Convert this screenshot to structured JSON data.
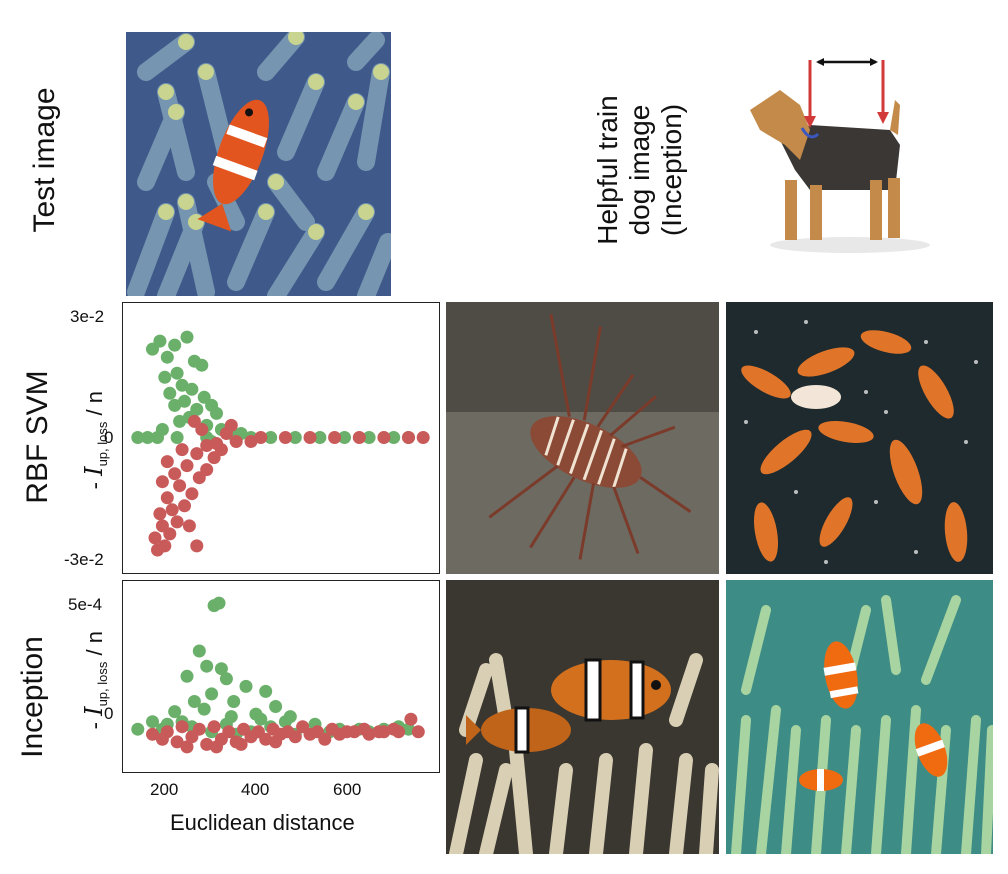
{
  "labels": {
    "test_image": "Test image",
    "helpful_line1": "Helpful train",
    "helpful_line2": "dog image",
    "helpful_line3": "(Inception)",
    "rbf_svm": "RBF SVM",
    "inception": "Inception"
  },
  "y_axis_label": {
    "minus": "-",
    "symbol": "I",
    "subscript": "up, loss",
    "suffix": "/ n"
  },
  "chart_data": [
    {
      "type": "scatter",
      "title": "",
      "model": "RBF SVM",
      "xlabel": "",
      "ylabel": "- I up, loss / n",
      "xlim": [
        120,
        760
      ],
      "ylim": [
        -0.03,
        0.03
      ],
      "yticks": [
        "3e-2",
        "0",
        "-3e-2"
      ],
      "grid": false,
      "series": [
        {
          "color": "#6ab06a",
          "points": [
            [
              180,
              0.022
            ],
            [
              195,
              0.024
            ],
            [
              210,
              0.02
            ],
            [
              225,
              0.023
            ],
            [
              250,
              0.025
            ],
            [
              265,
              0.019
            ],
            [
              280,
              0.018
            ],
            [
              230,
              0.016
            ],
            [
              205,
              0.015
            ],
            [
              240,
              0.013
            ],
            [
              260,
              0.012
            ],
            [
              215,
              0.011
            ],
            [
              285,
              0.01
            ],
            [
              300,
              0.008
            ],
            [
              225,
              0.008
            ],
            [
              245,
              0.009
            ],
            [
              270,
              0.007
            ],
            [
              310,
              0.006
            ],
            [
              255,
              0.005
            ],
            [
              235,
              0.004
            ],
            [
              290,
              0.003
            ],
            [
              320,
              0.002
            ],
            [
              200,
              0.002
            ],
            [
              340,
              0.001
            ],
            [
              360,
              0.001
            ],
            [
              150,
              0.0
            ],
            [
              170,
              0.0
            ],
            [
              230,
              0.0
            ],
            [
              290,
              0.0
            ],
            [
              380,
              0.0
            ],
            [
              420,
              0.0
            ],
            [
              470,
              0.0
            ],
            [
              520,
              0.0
            ],
            [
              570,
              0.0
            ],
            [
              620,
              0.0
            ],
            [
              670,
              0.0
            ],
            [
              700,
              0.0
            ],
            [
              300,
              -0.001
            ],
            [
              350,
              -0.0005
            ],
            [
              190,
              0.0
            ]
          ]
        },
        {
          "color": "#c95a5a",
          "points": [
            [
              190,
              -0.028
            ],
            [
              205,
              -0.027
            ],
            [
              185,
              -0.025
            ],
            [
              215,
              -0.024
            ],
            [
              200,
              -0.022
            ],
            [
              230,
              -0.021
            ],
            [
              195,
              -0.019
            ],
            [
              220,
              -0.018
            ],
            [
              245,
              -0.017
            ],
            [
              210,
              -0.015
            ],
            [
              260,
              -0.014
            ],
            [
              235,
              -0.012
            ],
            [
              200,
              -0.011
            ],
            [
              275,
              -0.01
            ],
            [
              225,
              -0.009
            ],
            [
              290,
              -0.008
            ],
            [
              250,
              -0.007
            ],
            [
              210,
              -0.006
            ],
            [
              305,
              -0.005
            ],
            [
              270,
              -0.004
            ],
            [
              240,
              -0.003
            ],
            [
              320,
              -0.003
            ],
            [
              290,
              -0.002
            ],
            [
              350,
              -0.001
            ],
            [
              380,
              -0.001
            ],
            [
              400,
              0.0
            ],
            [
              450,
              0.0
            ],
            [
              500,
              0.0
            ],
            [
              550,
              0.0
            ],
            [
              600,
              0.0
            ],
            [
              650,
              0.0
            ],
            [
              700,
              0.0
            ],
            [
              730,
              0.0
            ],
            [
              270,
              -0.027
            ],
            [
              330,
              0.001
            ],
            [
              310,
              -0.0015
            ],
            [
              280,
              0.002
            ],
            [
              255,
              -0.022
            ],
            [
              340,
              0.003
            ],
            [
              265,
              0.004
            ]
          ]
        }
      ]
    },
    {
      "type": "scatter",
      "title": "",
      "model": "Inception",
      "xlabel": "Euclidean distance",
      "ylabel": "- I up, loss / n",
      "xlim": [
        120,
        760
      ],
      "ylim": [
        -0.0001,
        0.00055
      ],
      "xticks": [
        200,
        400,
        600
      ],
      "yticks": [
        "5e-4",
        "0"
      ],
      "grid": false,
      "series": [
        {
          "color": "#6ab06a",
          "points": [
            [
              305,
              0.0005
            ],
            [
              315,
              0.00051
            ],
            [
              275,
              0.00032
            ],
            [
              290,
              0.00026
            ],
            [
              320,
              0.00025
            ],
            [
              250,
              0.00022
            ],
            [
              330,
              0.00021
            ],
            [
              370,
              0.00018
            ],
            [
              410,
              0.00016
            ],
            [
              300,
              0.00015
            ],
            [
              265,
              0.00012
            ],
            [
              345,
              0.00012
            ],
            [
              430,
              0.0001
            ],
            [
              225,
              8e-05
            ],
            [
              285,
              9e-05
            ],
            [
              390,
              7e-05
            ],
            [
              460,
              6e-05
            ],
            [
              180,
              4e-05
            ],
            [
              240,
              4e-05
            ],
            [
              330,
              3e-05
            ],
            [
              510,
              3e-05
            ],
            [
              150,
              1e-05
            ],
            [
              200,
              1e-05
            ],
            [
              260,
              2e-05
            ],
            [
              420,
              2e-05
            ],
            [
              560,
              1e-05
            ],
            [
              600,
              1e-05
            ],
            [
              650,
              1e-05
            ],
            [
              700,
              1e-05
            ],
            [
              350,
              -1e-05
            ],
            [
              470,
              -1e-05
            ],
            [
              300,
              0.0
            ],
            [
              380,
              0.0
            ],
            [
              540,
              0.0
            ],
            [
              620,
              0.0
            ],
            [
              680,
              2e-05
            ],
            [
              450,
              4e-05
            ],
            [
              210,
              3e-05
            ],
            [
              400,
              5e-05
            ],
            [
              340,
              6e-05
            ]
          ]
        },
        {
          "color": "#c95a5a",
          "points": [
            [
              200,
              -3e-05
            ],
            [
              230,
              -4e-05
            ],
            [
              260,
              -2e-05
            ],
            [
              290,
              -5e-05
            ],
            [
              320,
              -3e-05
            ],
            [
              350,
              -4e-05
            ],
            [
              380,
              -2e-05
            ],
            [
              410,
              -3e-05
            ],
            [
              440,
              -1e-05
            ],
            [
              470,
              -2e-05
            ],
            [
              500,
              -1e-05
            ],
            [
              530,
              -3e-05
            ],
            [
              560,
              -1e-05
            ],
            [
              590,
              0.0
            ],
            [
              620,
              -1e-05
            ],
            [
              650,
              0.0
            ],
            [
              680,
              0.0
            ],
            [
              720,
              0.0
            ],
            [
              705,
              5e-05
            ],
            [
              210,
              0.0
            ],
            [
              240,
              2e-05
            ],
            [
              275,
              1e-05
            ],
            [
              305,
              2e-05
            ],
            [
              335,
              0.0
            ],
            [
              365,
              1e-05
            ],
            [
              395,
              0.0
            ],
            [
              425,
              1e-05
            ],
            [
              455,
              0.0
            ],
            [
              485,
              2e-05
            ],
            [
              515,
              0.0
            ],
            [
              545,
              1e-05
            ],
            [
              575,
              0.0
            ],
            [
              610,
              1e-05
            ],
            [
              640,
              0.0
            ],
            [
              670,
              1e-05
            ],
            [
              180,
              -1e-05
            ],
            [
              250,
              -6e-05
            ],
            [
              310,
              -6e-05
            ],
            [
              360,
              -5e-05
            ],
            [
              430,
              -4e-05
            ]
          ]
        }
      ]
    }
  ],
  "colors": {
    "green": "#6ab06a",
    "red": "#c95a5a",
    "arrow_red": "#d23a3a"
  }
}
